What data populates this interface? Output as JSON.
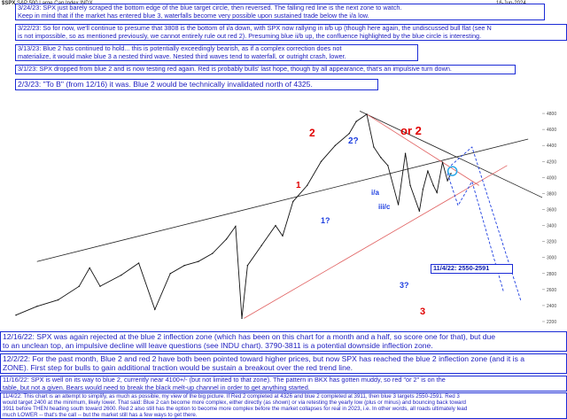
{
  "header": {
    "symbol": "$SPX",
    "title": "S&P 500 Large Cap Index  INDX",
    "date_right": "16-Jun-2024"
  },
  "notes": [
    {
      "id": "n1",
      "text": "3/24/23:  SPX just barely scraped the bottom edge of the blue target circle, then reversed.  The falling red line is the next zone to watch.\nKeep in mind that if the market has entered blue 3, waterfalls become very possible upon sustained trade below the i/a low."
    },
    {
      "id": "n2",
      "text": "3/22/23:  So for now, we'll continue to presume that 3808 is the bottom of i/a down, with SPX now rallying in ii/b up (though here again, the undiscussed bull flat (see N\nis not impossible, so as mentioned previously, we cannot entirely rule out red 2).  Presuming blue ii/b up, the confluence highlighted by the blue circle is interesting."
    },
    {
      "id": "n3",
      "text": "3/13/23:  Blue 2 has continued to hold... this is potentially exceedingly bearish, as if a complex correction does not\nmaterialize, it would make blue 3 a nested third wave.  Nested third waves tend to waterfall, or outright crash, lower."
    },
    {
      "id": "n4",
      "text": "3/1/23:  SPX dropped from blue 2 and is now testing red again.  Red is probably bulls' last hope, though by all appearance, that's an impulsive turn down."
    },
    {
      "id": "n5",
      "text": "2/3/23:  \"To B\" (from 12/16) it was.  Blue 2 would be technically invalidated north of 4325."
    },
    {
      "id": "n6",
      "text": "12/16/22:  SPX was again rejected at the blue 2 inflection zone (which has been on this chart for a month and a half, so score one for that), but due\nto an unclean top, an impulsive decline will leave questions (see INDU chart). 3790-3811 is a potential downside inflection zone."
    },
    {
      "id": "n7",
      "text": "12/2/22:  For the past month, Blue 2 and red 2 have both been pointed toward higher prices, but now SPX has reached the blue 2 inflection zone (and it is a\nZONE).  First step for bulls to gain additional traction would be sustain a breakout over the red trend line."
    },
    {
      "id": "n8",
      "text": "11/16/22:  SPX is well on its way to blue 2, currently near 4100+/- (but not limited to that zone).  The pattern in BKX has gotten muddy, so red \"or 2\" is on the\ntable, but not a given.  Bears would need to break the black melt-up channel in order to get anything started."
    },
    {
      "id": "n9",
      "text": "11/4/22:  This chart is an attempt to simplify, as much as possible, my view of the big picture.  If Red 2 completed at 4326 and blue 2 completed at 3911, then blue 3 targets 2550-2591.  Red 3\nwould target 2400 at the minimum, likely lower.  That said:  Blue 2 can become more complex, either directly (as shown) or via retesting the yearly low (plus or minus) and bouncing back toward\n3911 before THEN heading south toward 2600.  Red 2 also still has the option to become more complex before the market collapses for real in 2023, i.e.  In other words, all roads ultimately lead\nmuch LOWER -- that's the call -- but the market still has a few ways to get there."
    }
  ],
  "wave_labels": {
    "red_2": "2",
    "red_1": "1",
    "red_or_2": "or 2",
    "red_3": "3",
    "blue_2q": "2?",
    "blue_1q": "1?",
    "blue_ia": "i/a",
    "blue_iiic": "iii/c",
    "blue_3q": "3?",
    "target_label": "11/4/22: 2550-2591"
  },
  "colors": {
    "note_text": "#2020c0",
    "note_border": "#1b2bd6",
    "red": "#e00000",
    "blue": "#1e3fe0",
    "price": "#111111",
    "circle": "#2aa8e8"
  },
  "chart_data": {
    "type": "line",
    "title": "S&P 500 Large Cap Index",
    "series": [
      {
        "name": "S&P 500 Large Cap Index",
        "x": [
          2017.0,
          2017.3,
          2017.6,
          2017.9,
          2018.05,
          2018.2,
          2018.5,
          2018.75,
          2018.98,
          2019.2,
          2019.4,
          2019.6,
          2019.8,
          2020.0,
          2020.13,
          2020.22,
          2020.3,
          2020.5,
          2020.7,
          2020.8,
          2020.95,
          2021.15,
          2021.35,
          2021.55,
          2021.75,
          2021.85,
          2022.0,
          2022.1,
          2022.2,
          2022.3,
          2022.45,
          2022.55,
          2022.62,
          2022.75,
          2022.8,
          2022.87,
          2022.95,
          2023.0,
          2023.08,
          2023.15,
          2023.2
        ],
        "y": [
          2280,
          2390,
          2470,
          2640,
          2870,
          2640,
          2780,
          2930,
          2350,
          2800,
          2900,
          2950,
          3050,
          3230,
          3390,
          2240,
          2900,
          3150,
          3400,
          3270,
          3700,
          3900,
          4200,
          4400,
          4550,
          4700,
          4790,
          4380,
          4250,
          4150,
          3660,
          4300,
          3900,
          3580,
          3850,
          4080,
          3900,
          3810,
          4190,
          3960,
          4050
        ]
      }
    ],
    "xlabel": "",
    "ylabel": "",
    "xlim": [
      2017.0,
      2024.5
    ],
    "ylim": [
      2100,
      5000
    ],
    "price_levels": [
      3808,
      3911,
      4326,
      4325,
      4100,
      2550,
      2591,
      2400
    ],
    "y_ticks": [
      2200,
      2400,
      2600,
      2800,
      3000,
      3200,
      3400,
      3600,
      3800,
      4000,
      4200,
      4400,
      4600,
      4800
    ],
    "grid": false
  }
}
